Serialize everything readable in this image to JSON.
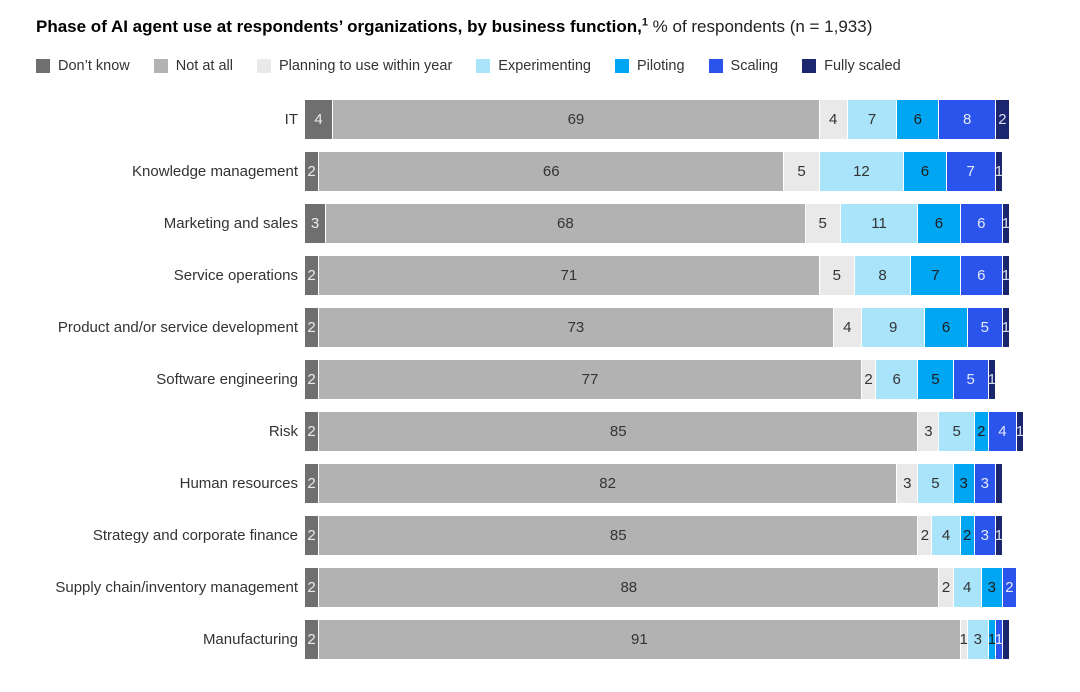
{
  "title": {
    "bold_text": "Phase of AI agent use at respondents’ organizations, by business function,",
    "footnote_marker": "1",
    "regular_text": " % of respondents (n = 1,933)"
  },
  "legend": {
    "items": [
      {
        "key": "dont-know",
        "label": "Don’t know",
        "color": "#6f6f6f"
      },
      {
        "key": "not-at-all",
        "label": "Not at all",
        "color": "#b2b2b2"
      },
      {
        "key": "planning",
        "label": "Planning to use within year",
        "color": "#e9e9e9"
      },
      {
        "key": "experimenting",
        "label": "Experimenting",
        "color": "#a9e4fb"
      },
      {
        "key": "piloting",
        "label": "Piloting",
        "color": "#00a6f2"
      },
      {
        "key": "scaling",
        "label": "Scaling",
        "color": "#2a54eb"
      },
      {
        "key": "fully-scaled",
        "label": "Fully scaled",
        "color": "#1a2770"
      }
    ]
  },
  "chart_data": {
    "type": "bar",
    "stacked": true,
    "orientation": "horizontal",
    "title": "Phase of AI agent use at respondents’ organizations, by business function",
    "unit": "% of respondents",
    "sample_size": "n = 1,933",
    "x_max": 100,
    "grid": false,
    "legend_position": "top",
    "categories": [
      "IT",
      "Knowledge management",
      "Marketing and sales",
      "Service operations",
      "Product and/or service development",
      "Software engineering",
      "Risk",
      "Human resources",
      "Strategy and corporate finance",
      "Supply chain/inventory management",
      "Manufacturing"
    ],
    "series": [
      {
        "name": "Don’t know",
        "key": "dont-know",
        "color": "#6f6f6f",
        "text_color": "#ececec",
        "values": [
          4,
          2,
          3,
          2,
          2,
          2,
          2,
          2,
          2,
          2,
          2
        ],
        "labels": [
          "4",
          "2",
          "3",
          "2",
          "2",
          "2",
          "2",
          "2",
          "2",
          "2",
          "2"
        ]
      },
      {
        "name": "Not at all",
        "key": "not-at-all",
        "color": "#b2b2b2",
        "text_color": "#333333",
        "values": [
          69,
          66,
          68,
          71,
          73,
          77,
          85,
          82,
          85,
          88,
          91
        ],
        "labels": [
          "69",
          "66",
          "68",
          "71",
          "73",
          "77",
          "85",
          "82",
          "85",
          "88",
          "91"
        ]
      },
      {
        "name": "Planning to use within year",
        "key": "planning",
        "color": "#e9e9e9",
        "text_color": "#333333",
        "values": [
          4,
          5,
          5,
          5,
          4,
          2,
          3,
          3,
          2,
          2,
          1
        ],
        "labels": [
          "4",
          "5",
          "5",
          "5",
          "4",
          "2",
          "3",
          "3",
          "2",
          "2",
          "1"
        ]
      },
      {
        "name": "Experimenting",
        "key": "experimenting",
        "color": "#a9e4fb",
        "text_color": "#333333",
        "values": [
          7,
          12,
          11,
          8,
          9,
          6,
          5,
          5,
          4,
          4,
          3
        ],
        "labels": [
          "7",
          "12",
          "11",
          "8",
          "9",
          "6",
          "5",
          "5",
          "4",
          "4",
          "3"
        ]
      },
      {
        "name": "Piloting",
        "key": "piloting",
        "color": "#00a6f2",
        "text_color": "#1e1e1e",
        "values": [
          6,
          6,
          6,
          7,
          6,
          5,
          2,
          3,
          2,
          3,
          1
        ],
        "labels": [
          "6",
          "6",
          "6",
          "7",
          "6",
          "5",
          "2",
          "3",
          "2",
          "3",
          "1"
        ]
      },
      {
        "name": "Scaling",
        "key": "scaling",
        "color": "#2a54eb",
        "text_color": "#e3e9fa",
        "values": [
          8,
          7,
          6,
          6,
          5,
          5,
          4,
          3,
          3,
          2,
          1
        ],
        "labels": [
          "8",
          "7",
          "6",
          "6",
          "5",
          "5",
          "4",
          "3",
          "3",
          "2",
          "1"
        ]
      },
      {
        "name": "Fully scaled",
        "key": "fully-scaled",
        "color": "#1a2770",
        "text_color": "#d9dcec",
        "values": [
          2,
          1,
          1,
          1,
          1,
          1,
          1,
          1,
          1,
          0,
          1
        ],
        "labels": [
          "2",
          "1",
          "1",
          "1",
          "1",
          "1",
          "1",
          "",
          "1",
          "",
          ""
        ]
      }
    ]
  }
}
